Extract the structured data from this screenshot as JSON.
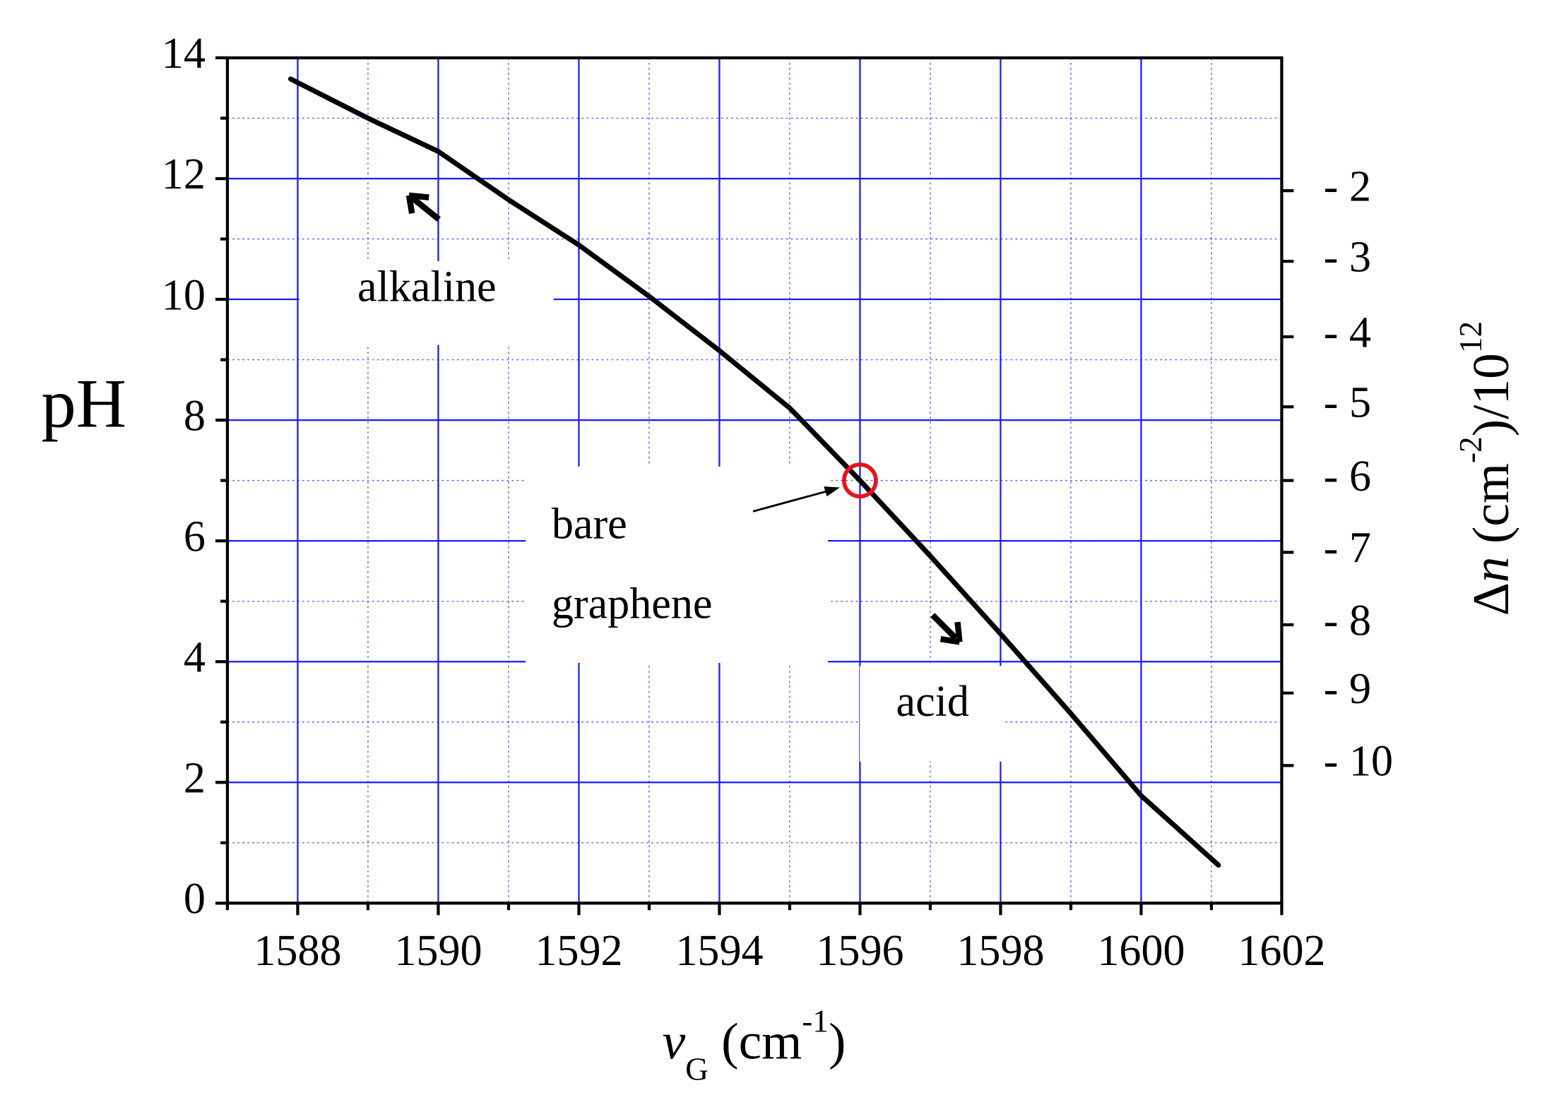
{
  "chart_data": {
    "type": "line",
    "xlabel": [
      "v",
      "G",
      " (cm",
      "-1",
      ")"
    ],
    "ylabel": "pH",
    "y2label": [
      "Δ",
      "n",
      " (cm",
      "-2",
      ")/10",
      "12"
    ],
    "series": [
      {
        "color": "#000000",
        "x": [
          1587.9,
          1589,
          1590,
          1591,
          1592,
          1593,
          1594,
          1595,
          1596,
          1597,
          1598,
          1599,
          1600,
          1601.1
        ],
        "values": [
          13.65,
          13.0,
          12.45,
          11.65,
          10.9,
          10.05,
          9.15,
          8.2,
          7.0,
          5.75,
          4.46,
          3.14,
          1.78,
          0.63
        ]
      }
    ],
    "marker": {
      "x": 1596,
      "y": 7,
      "color": "#e8141a"
    },
    "xlim": [
      1587,
      1602
    ],
    "ylim": [
      0,
      14
    ],
    "xticks": [
      1588,
      1590,
      1592,
      1594,
      1596,
      1598,
      1600,
      1602
    ],
    "yticks": [
      0,
      2,
      4,
      6,
      8,
      10,
      12,
      14
    ],
    "minor_xticks": [
      1587,
      1589,
      1591,
      1593,
      1595,
      1597,
      1599,
      1601
    ],
    "minor_yticks": [
      1,
      3,
      5,
      7,
      9,
      11,
      13
    ],
    "y2lim": [
      0,
      14
    ],
    "y2ticks": [
      {
        "value": 11.8,
        "label": "- 2"
      },
      {
        "value": 10.63,
        "label": "- 3"
      },
      {
        "value": 9.38,
        "label": "- 4"
      },
      {
        "value": 8.22,
        "label": "- 5"
      },
      {
        "value": 7.0,
        "label": "- 6"
      },
      {
        "value": 5.81,
        "label": "- 7"
      },
      {
        "value": 4.61,
        "label": "- 8"
      },
      {
        "value": 3.48,
        "label": "- 9"
      },
      {
        "value": 2.28,
        "label": "- 10"
      }
    ],
    "grid": true,
    "grid_color": "#1a1aff",
    "annotations": {
      "alkaline": "alkaline",
      "bare": [
        "bare",
        "graphene"
      ],
      "acid": "acid"
    }
  }
}
